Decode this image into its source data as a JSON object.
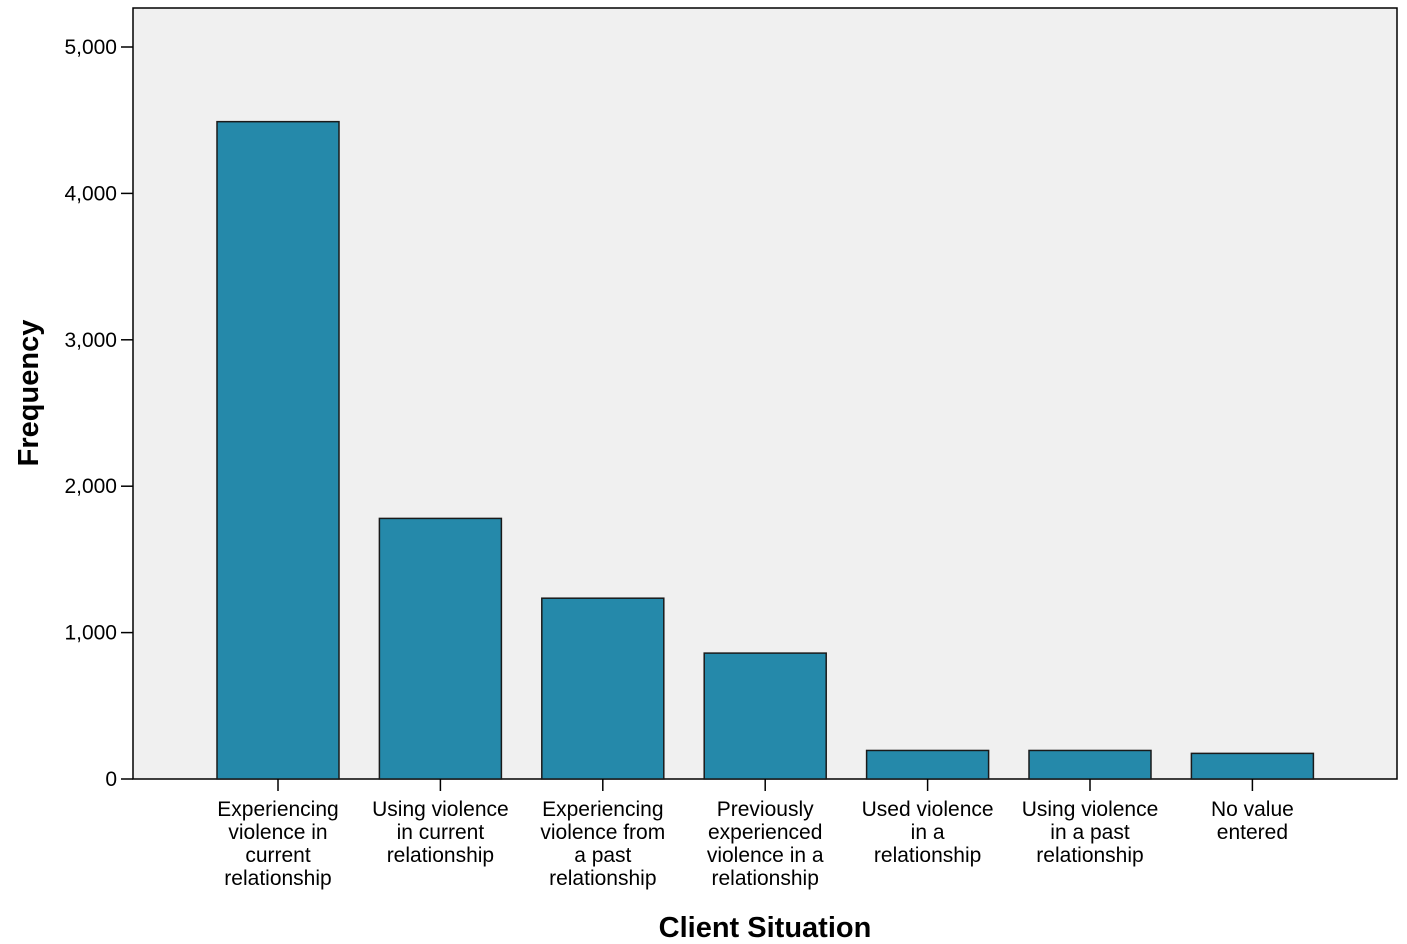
{
  "colors": {
    "plot_background": "#f0f0f0",
    "bar_fill": "#2589aa",
    "bar_stroke": "#1a1a1a",
    "axis": "#000000"
  },
  "chart_data": {
    "type": "bar",
    "categories": [
      [
        "Experiencing",
        "violence in",
        "current",
        "relationship"
      ],
      [
        "Using violence",
        "in current",
        "relationship"
      ],
      [
        "Experiencing",
        "violence from",
        "a past",
        "relationship"
      ],
      [
        "Previously",
        "experienced",
        "violence in a",
        "relationship"
      ],
      [
        "Used violence",
        "in a",
        "relationship"
      ],
      [
        "Using violence",
        "in a past",
        "relationship"
      ],
      [
        "No value",
        "entered"
      ]
    ],
    "values": [
      4490,
      1780,
      1235,
      860,
      195,
      195,
      175
    ],
    "xlabel": "Client Situation",
    "ylabel": "Frequency",
    "ylim": [
      0,
      5000
    ],
    "yticks": [
      0,
      1000,
      2000,
      3000,
      4000,
      5000
    ],
    "ytick_labels": [
      "0",
      "1,000",
      "2,000",
      "3,000",
      "4,000",
      "5,000"
    ],
    "grid": false,
    "legend": "none"
  }
}
